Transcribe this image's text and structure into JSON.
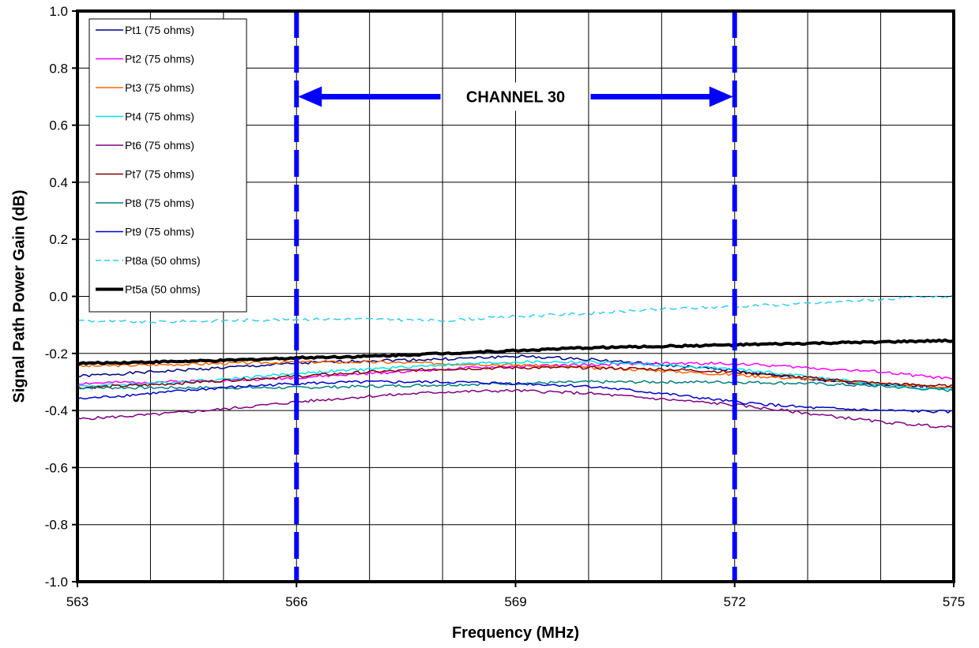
{
  "chart_data": {
    "type": "line",
    "title": "",
    "xlabel": "Frequency (MHz)",
    "ylabel": "Signal Path Power Gain (dB)",
    "xlim": [
      563,
      575
    ],
    "ylim": [
      -1.0,
      1.0
    ],
    "x_ticks": [
      "563",
      "566",
      "569",
      "572",
      "575"
    ],
    "y_ticks": [
      "1.0",
      "0.8",
      "0.6",
      "0.4",
      "0.2",
      "0.0",
      "-0.2",
      "-0.4",
      "-0.6",
      "-0.8",
      "-1.0"
    ],
    "grid": true,
    "legend_position": "top-left",
    "annotation": {
      "label": "CHANNEL 30",
      "from": 566,
      "to": 572,
      "y": 0.7,
      "color": "#0000ff"
    },
    "series": [
      {
        "name": "Pt1 (75 ohms)",
        "color": "#000080",
        "style": "solid",
        "x": [
          563,
          564,
          565,
          566,
          567,
          568,
          569,
          570,
          571,
          572,
          573,
          574,
          575
        ],
        "y": [
          -0.28,
          -0.265,
          -0.25,
          -0.235,
          -0.225,
          -0.22,
          -0.21,
          -0.22,
          -0.24,
          -0.26,
          -0.29,
          -0.31,
          -0.32
        ]
      },
      {
        "name": "Pt2 (75 ohms)",
        "color": "#ff00ff",
        "style": "solid",
        "x": [
          563,
          564,
          565,
          566,
          567,
          568,
          569,
          570,
          571,
          572,
          573,
          574,
          575
        ],
        "y": [
          -0.305,
          -0.3,
          -0.295,
          -0.285,
          -0.27,
          -0.255,
          -0.245,
          -0.24,
          -0.235,
          -0.235,
          -0.25,
          -0.265,
          -0.29
        ]
      },
      {
        "name": "Pt3 (75 ohms)",
        "color": "#ff6600",
        "style": "solid",
        "x": [
          563,
          564,
          565,
          566,
          567,
          568,
          569,
          570,
          571,
          572,
          573,
          574,
          575
        ],
        "y": [
          -0.245,
          -0.24,
          -0.235,
          -0.23,
          -0.23,
          -0.235,
          -0.24,
          -0.25,
          -0.26,
          -0.275,
          -0.29,
          -0.305,
          -0.32
        ]
      },
      {
        "name": "Pt4 (75 ohms)",
        "color": "#00e5ee",
        "style": "solid",
        "x": [
          563,
          564,
          565,
          566,
          567,
          568,
          569,
          570,
          571,
          572,
          573,
          574,
          575
        ],
        "y": [
          -0.315,
          -0.305,
          -0.29,
          -0.27,
          -0.255,
          -0.24,
          -0.23,
          -0.23,
          -0.24,
          -0.255,
          -0.28,
          -0.31,
          -0.33
        ]
      },
      {
        "name": "Pt6 (75 ohms)",
        "color": "#800080",
        "style": "solid",
        "x": [
          563,
          564,
          565,
          566,
          567,
          568,
          569,
          570,
          571,
          572,
          573,
          574,
          575
        ],
        "y": [
          -0.43,
          -0.415,
          -0.395,
          -0.37,
          -0.35,
          -0.335,
          -0.33,
          -0.34,
          -0.36,
          -0.38,
          -0.41,
          -0.44,
          -0.46
        ]
      },
      {
        "name": "Pt7 (75 ohms)",
        "color": "#800000",
        "style": "solid",
        "x": [
          563,
          564,
          565,
          566,
          567,
          568,
          569,
          570,
          571,
          572,
          573,
          574,
          575
        ],
        "y": [
          -0.32,
          -0.31,
          -0.295,
          -0.28,
          -0.265,
          -0.255,
          -0.25,
          -0.25,
          -0.255,
          -0.265,
          -0.285,
          -0.305,
          -0.315
        ]
      },
      {
        "name": "Pt8 (75 ohms)",
        "color": "#008080",
        "style": "solid",
        "x": [
          563,
          564,
          565,
          566,
          567,
          568,
          569,
          570,
          571,
          572,
          573,
          574,
          575
        ],
        "y": [
          -0.32,
          -0.32,
          -0.32,
          -0.32,
          -0.315,
          -0.31,
          -0.305,
          -0.3,
          -0.3,
          -0.3,
          -0.305,
          -0.315,
          -0.33
        ]
      },
      {
        "name": "Pt9 (75 ohms)",
        "color": "#0000cc",
        "style": "solid",
        "x": [
          563,
          564,
          565,
          566,
          567,
          568,
          569,
          570,
          571,
          572,
          573,
          574,
          575
        ],
        "y": [
          -0.36,
          -0.34,
          -0.32,
          -0.305,
          -0.3,
          -0.3,
          -0.305,
          -0.315,
          -0.34,
          -0.37,
          -0.39,
          -0.4,
          -0.405
        ]
      },
      {
        "name": "Pt8a (50 ohms)",
        "color": "#33ccee",
        "style": "dashed",
        "x": [
          563,
          564,
          565,
          566,
          567,
          568,
          569,
          570,
          571,
          572,
          573,
          574,
          575
        ],
        "y": [
          -0.085,
          -0.09,
          -0.085,
          -0.08,
          -0.08,
          -0.085,
          -0.07,
          -0.06,
          -0.045,
          -0.035,
          -0.025,
          -0.01,
          0.0
        ]
      },
      {
        "name": "Pt5a (50 ohms)",
        "color": "#000000",
        "style": "thick",
        "x": [
          563,
          564,
          565,
          566,
          567,
          568,
          569,
          570,
          571,
          572,
          573,
          574,
          575
        ],
        "y": [
          -0.235,
          -0.23,
          -0.225,
          -0.215,
          -0.21,
          -0.2,
          -0.19,
          -0.18,
          -0.175,
          -0.17,
          -0.165,
          -0.16,
          -0.155
        ]
      }
    ]
  }
}
